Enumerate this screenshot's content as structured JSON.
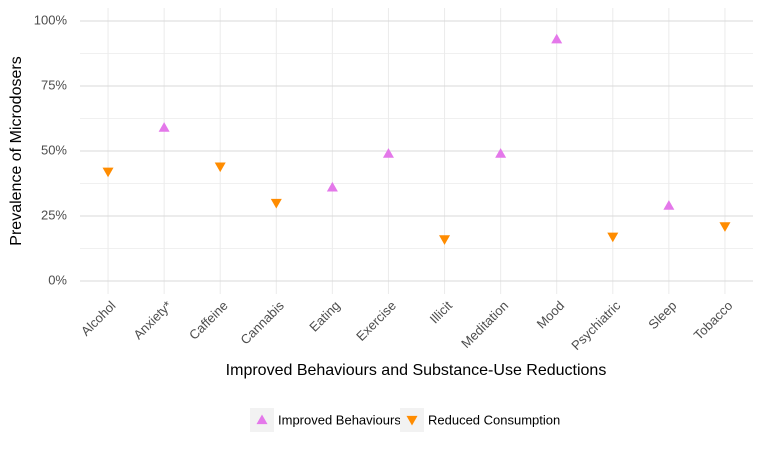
{
  "chart_data": {
    "type": "scatter",
    "x_label": "Improved Behaviours and Substance-Use Reductions",
    "y_label": "Prevalence of Microdosers",
    "categories": [
      "Alcohol",
      "Anxiety*",
      "Caffeine",
      "Cannabis",
      "Eating",
      "Exercise",
      "Illicit",
      "Meditation",
      "Mood",
      "Psychiatric",
      "Sleep",
      "Tobacco"
    ],
    "series": [
      {
        "name": "Improved Behaviours",
        "color": "#e478ea",
        "marker": "triangle-up",
        "values": [
          null,
          59,
          null,
          null,
          36,
          49,
          null,
          49,
          93,
          null,
          29,
          null
        ]
      },
      {
        "name": "Reduced Consumption",
        "color": "#ff8c00",
        "marker": "triangle-down",
        "values": [
          42,
          null,
          44,
          30,
          null,
          null,
          16,
          null,
          null,
          17,
          null,
          21
        ]
      }
    ],
    "ylim": [
      -5,
      105
    ],
    "yticks": [
      {
        "value": 0,
        "label": "0%"
      },
      {
        "value": 25,
        "label": "25%"
      },
      {
        "value": 50,
        "label": "50%"
      },
      {
        "value": 75,
        "label": "75%"
      },
      {
        "value": 100,
        "label": "100%"
      }
    ],
    "minor_yticks": [
      12.5,
      37.5,
      62.5,
      87.5
    ],
    "grid": true,
    "legend_position": "bottom"
  }
}
